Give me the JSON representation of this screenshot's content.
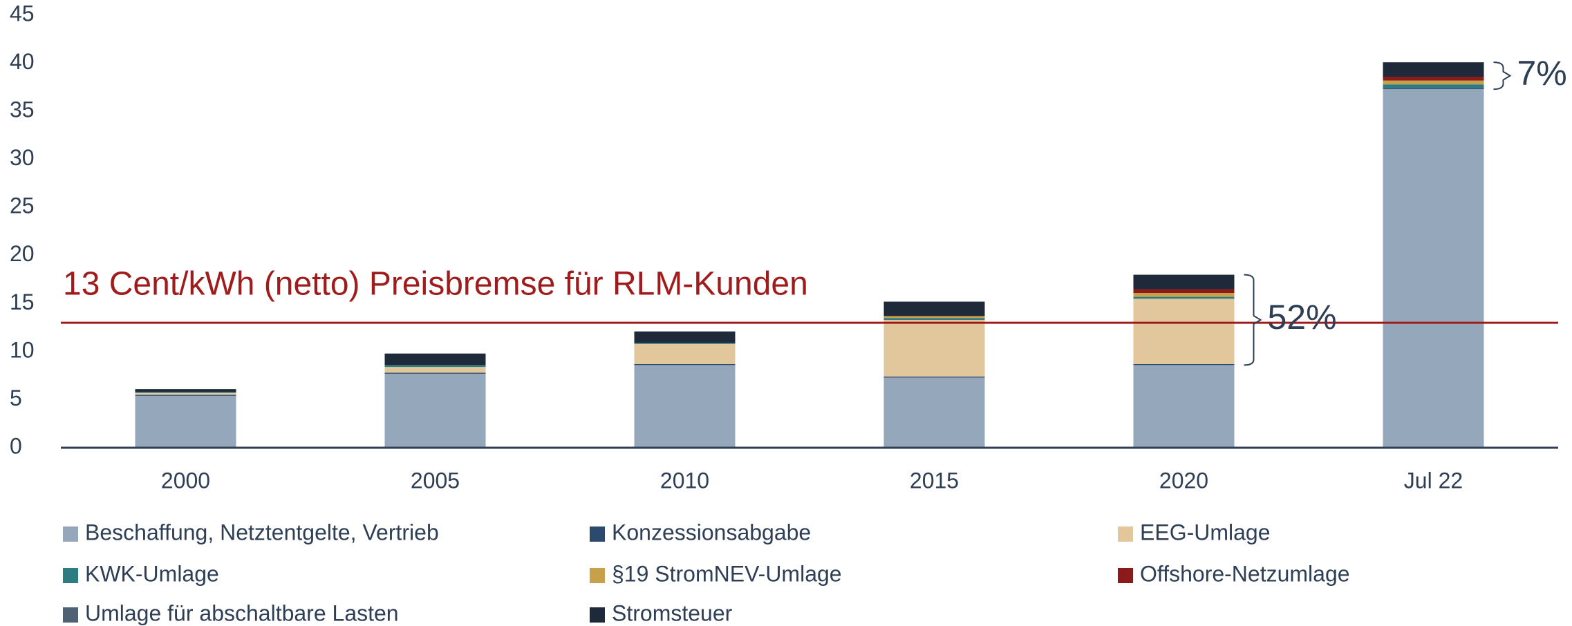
{
  "chart_data": {
    "type": "stacked_bar",
    "categories": [
      "2000",
      "2005",
      "2010",
      "2015",
      "2020",
      "Jul 22"
    ],
    "series": [
      {
        "name": "Beschaffung, Netztentgelte, Vertrieb",
        "color": "#94a7bb",
        "values": [
          5.4,
          7.7,
          8.6,
          7.3,
          8.6,
          37.3
        ]
      },
      {
        "name": "Konzessionsabgabe",
        "color": "#2c4a6e",
        "values": [
          0.1,
          0.1,
          0.1,
          0.1,
          0.1,
          0.1
        ]
      },
      {
        "name": "EEG-Umlage",
        "color": "#e2c79c",
        "values": [
          0.2,
          0.6,
          2.1,
          5.9,
          6.8,
          0
        ]
      },
      {
        "name": "KWK-Umlage",
        "color": "#2e7b82",
        "values": [
          0.1,
          0.2,
          0.1,
          0.2,
          0.2,
          0.4
        ]
      },
      {
        "name": "§19 StromNEV-Umlage",
        "color": "#c9a04a",
        "values": [
          0,
          0,
          0,
          0.2,
          0.4,
          0.4
        ]
      },
      {
        "name": "Offshore-Netzumlage",
        "color": "#8b1a1a",
        "values": [
          0,
          0,
          0,
          0,
          0.4,
          0.4
        ]
      },
      {
        "name": "Umlage für abschaltbare Lasten",
        "color": "#4f6274",
        "values": [
          0,
          0,
          0,
          0,
          0,
          0
        ]
      },
      {
        "name": "Stromsteuer",
        "color": "#1e2a3a",
        "values": [
          0.3,
          1.2,
          1.2,
          1.5,
          1.5,
          1.5
        ]
      }
    ],
    "ylim": [
      0,
      45
    ],
    "yticks": [
      0,
      5,
      10,
      15,
      20,
      25,
      30,
      35,
      40,
      45
    ],
    "reference_line": {
      "value": 13,
      "label": "13 Cent/kWh (netto) Preisbremse für RLM-Kunden",
      "color": "#a01c1c"
    },
    "annotations": [
      {
        "text": "52%",
        "category": "2020"
      },
      {
        "text": "7%",
        "category": "Jul 22"
      }
    ]
  }
}
